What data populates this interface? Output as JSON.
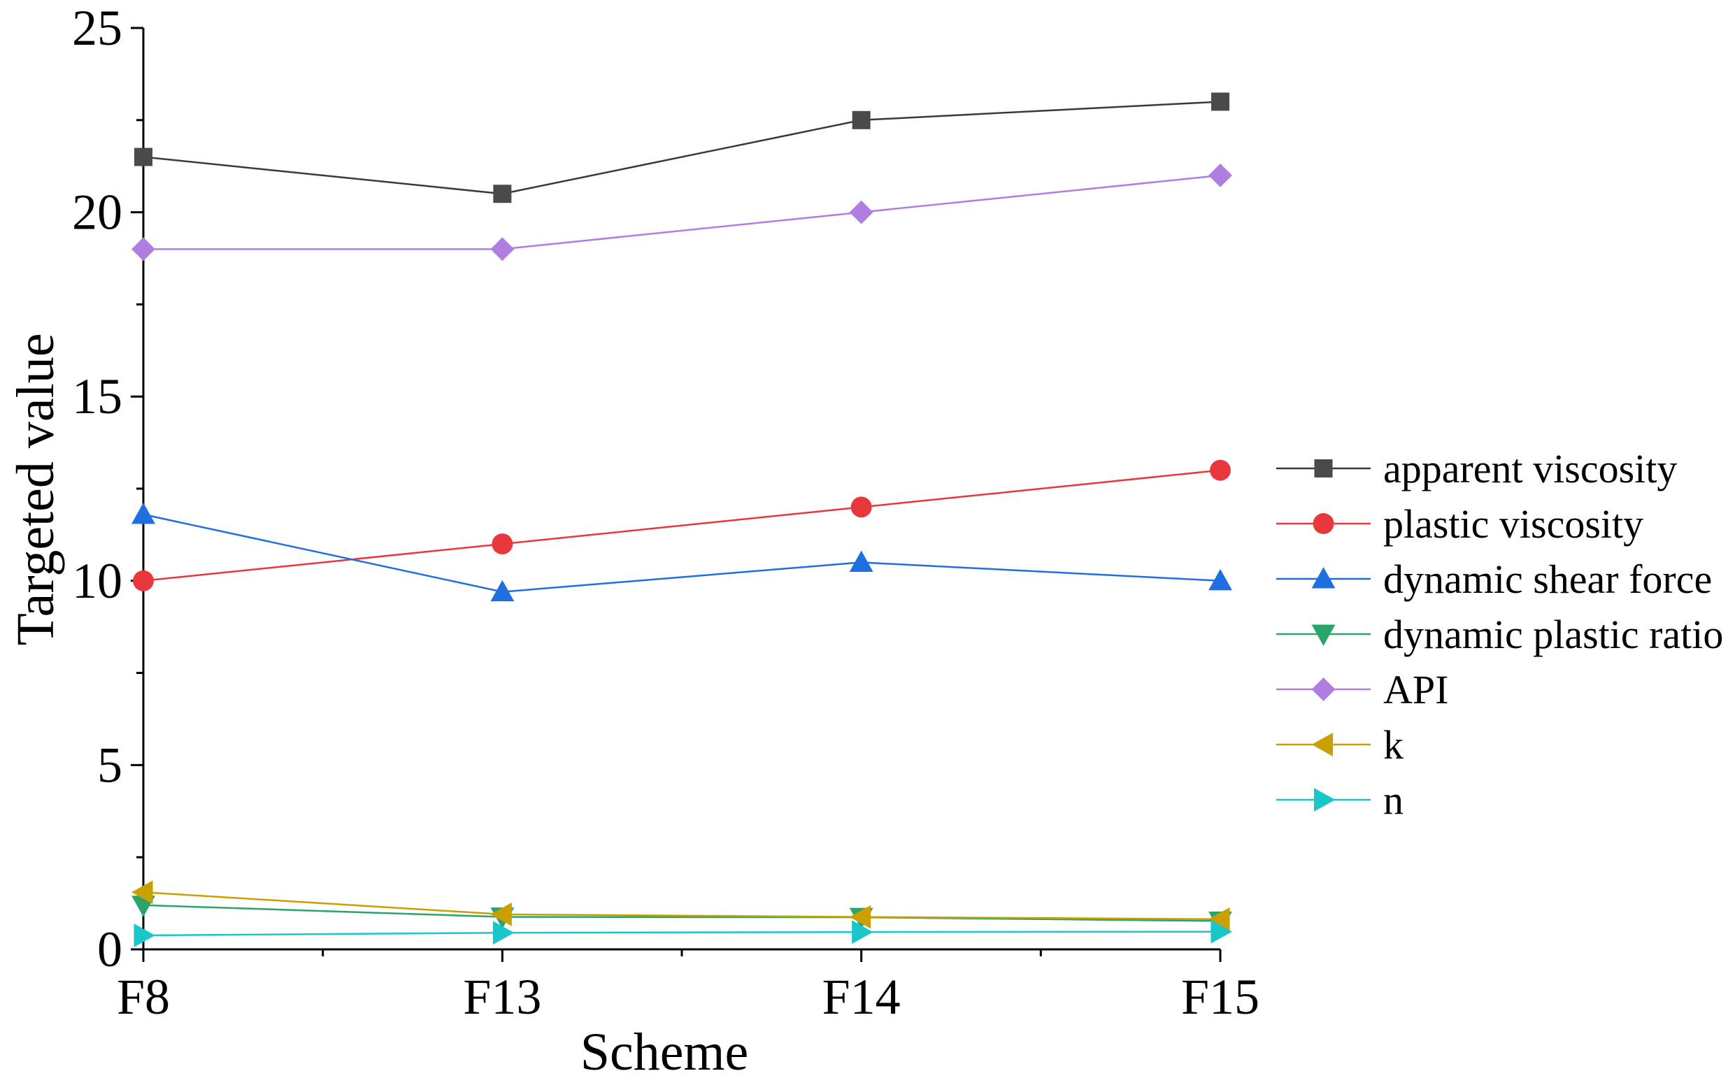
{
  "chart_data": {
    "type": "line",
    "title": "",
    "xlabel": "Scheme",
    "ylabel": "Targeted value",
    "categories": [
      "F8",
      "F13",
      "F14",
      "F15"
    ],
    "ylim": [
      0,
      25
    ],
    "yticks": [
      0,
      5,
      10,
      15,
      20,
      25
    ],
    "ytick_labels": [
      "0",
      "5",
      "10",
      "15",
      "20",
      "25"
    ],
    "grid": false,
    "legend_position": "right",
    "series": [
      {
        "name": "apparent viscosity",
        "marker": "square",
        "color": "#4a4a4a",
        "line_color": "#3a3a3a",
        "values": [
          21.5,
          20.5,
          22.5,
          23
        ]
      },
      {
        "name": "plastic viscosity",
        "marker": "circle",
        "color": "#e8383d",
        "line_color": "#e8383d",
        "values": [
          10,
          11,
          12,
          13
        ]
      },
      {
        "name": "dynamic shear force",
        "marker": "triangle-up",
        "color": "#1f6fe0",
        "line_color": "#1f6fe0",
        "values": [
          11.8,
          9.7,
          10.5,
          10
        ]
      },
      {
        "name": "dynamic plastic ratio",
        "marker": "triangle-down",
        "color": "#2aa56a",
        "line_color": "#2aa56a",
        "values": [
          1.2,
          0.88,
          0.87,
          0.77
        ]
      },
      {
        "name": "API",
        "marker": "diamond",
        "color": "#b07ee0",
        "line_color": "#b07ee0",
        "values": [
          19,
          19,
          20,
          21
        ]
      },
      {
        "name": "k",
        "marker": "triangle-left",
        "color": "#c9a000",
        "line_color": "#c9a000",
        "values": [
          1.55,
          0.95,
          0.88,
          0.82
        ]
      },
      {
        "name": "n",
        "marker": "triangle-right",
        "color": "#19c6c9",
        "line_color": "#19c6c9",
        "values": [
          0.38,
          0.45,
          0.47,
          0.48
        ]
      }
    ]
  }
}
